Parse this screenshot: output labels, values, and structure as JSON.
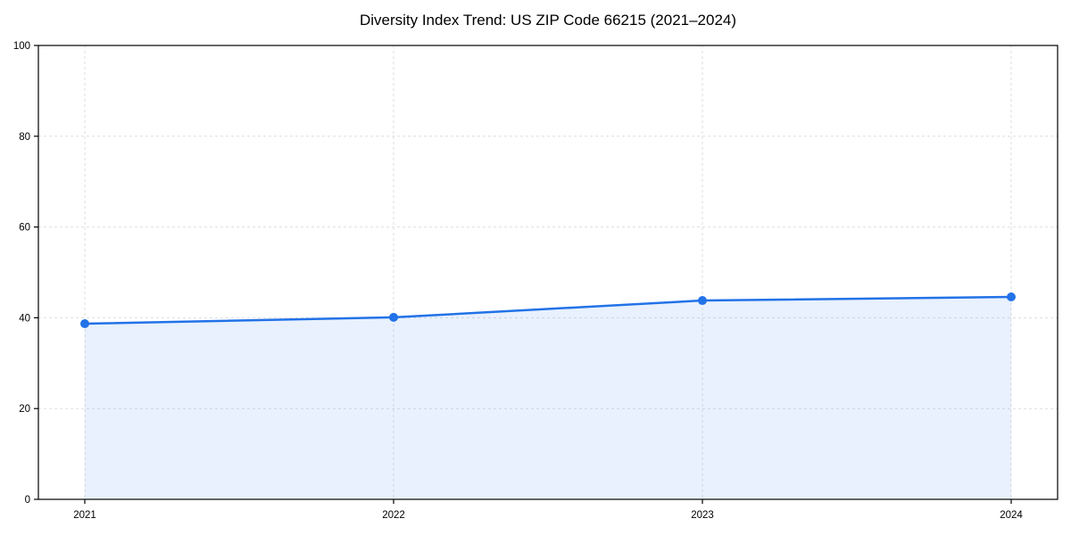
{
  "chart_data": {
    "type": "line",
    "title": "Diversity Index Trend: US ZIP Code 66215 (2021–2024)",
    "categories": [
      "2021",
      "2022",
      "2023",
      "2024"
    ],
    "series": [
      {
        "name": "Diversity Index",
        "values": [
          38.7,
          40.1,
          43.8,
          44.6
        ]
      }
    ],
    "xlabel": "",
    "ylabel": "",
    "ylim": [
      0,
      100
    ],
    "yticks": [
      0,
      20,
      40,
      60,
      80,
      100
    ],
    "grid": true,
    "grid_style": "dashed",
    "legend": false,
    "marker": "circle",
    "area_fill": true,
    "colors": {
      "line": "#2272e8",
      "marker": "#2272e8",
      "fill": "#2272e8",
      "fill_opacity": 0.1,
      "grid": "#dedede",
      "spine": "#000000",
      "text": "#000000",
      "background": "#ffffff"
    }
  }
}
